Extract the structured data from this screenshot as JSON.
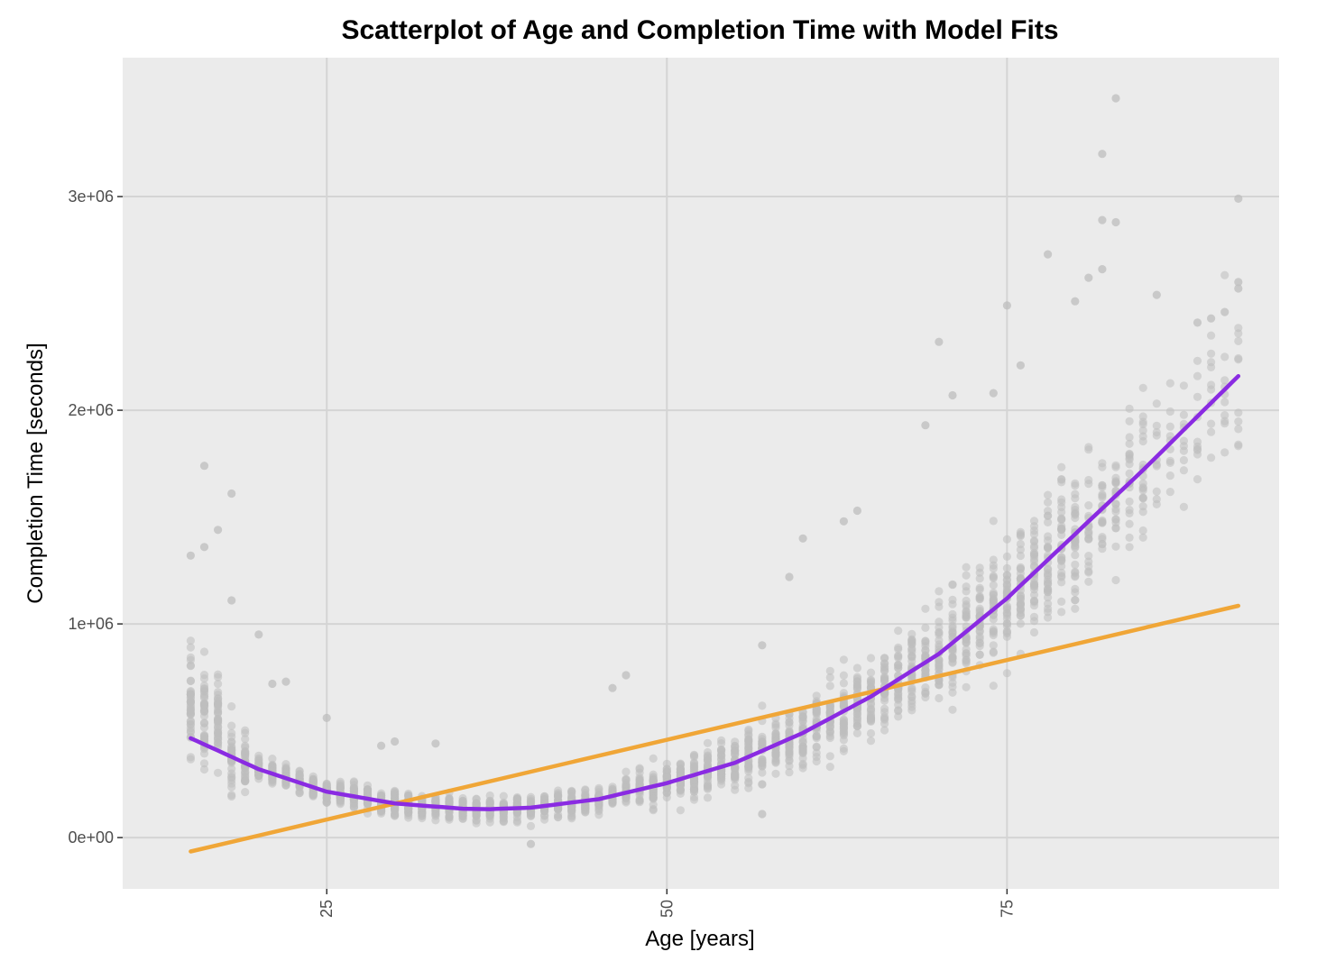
{
  "chart_data": {
    "type": "scatter",
    "title": "Scatterplot of Age and Completion Time with Model Fits",
    "xlabel": "Age [years]",
    "ylabel": "Completion Time [seconds]",
    "xlim": [
      10,
      95
    ],
    "ylim": [
      -240000,
      3650000
    ],
    "x_ticks": [
      25,
      50,
      75
    ],
    "x_tick_labels": [
      "25",
      "50",
      "75"
    ],
    "y_ticks": [
      0,
      1000000,
      2000000,
      3000000
    ],
    "y_tick_labels": [
      "0e+00",
      "1e+06",
      "2e+06",
      "3e+06"
    ],
    "grid": true,
    "legend": "none",
    "points": {
      "color": "#bdbdbd",
      "age_range": [
        15,
        92
      ],
      "description_note": "",
      "outliers": [
        [
          16,
          1740000
        ],
        [
          18,
          1610000
        ],
        [
          17,
          1440000
        ],
        [
          78,
          2730000
        ],
        [
          82,
          3200000
        ],
        [
          83,
          3460000
        ],
        [
          82,
          2890000
        ],
        [
          83,
          2880000
        ],
        [
          92,
          2990000
        ],
        [
          92,
          2600000
        ],
        [
          92,
          2570000
        ],
        [
          70,
          2320000
        ],
        [
          75,
          2490000
        ],
        [
          76,
          2210000
        ],
        [
          69,
          1930000
        ],
        [
          71,
          2070000
        ],
        [
          74,
          2080000
        ],
        [
          80,
          2510000
        ],
        [
          81,
          2620000
        ],
        [
          82,
          2660000
        ],
        [
          86,
          2540000
        ],
        [
          89,
          2410000
        ],
        [
          90,
          2430000
        ],
        [
          91,
          2460000
        ],
        [
          57,
          900000
        ],
        [
          47,
          760000
        ],
        [
          46,
          700000
        ],
        [
          59,
          1220000
        ],
        [
          63,
          1480000
        ],
        [
          64,
          1530000
        ],
        [
          57,
          110000
        ],
        [
          60,
          1400000
        ],
        [
          22,
          730000
        ],
        [
          21,
          720000
        ],
        [
          25,
          560000
        ],
        [
          30,
          450000
        ],
        [
          33,
          440000
        ],
        [
          40,
          -30000
        ],
        [
          29,
          430000
        ],
        [
          20,
          950000
        ],
        [
          18,
          1110000
        ],
        [
          16,
          1360000
        ],
        [
          15,
          1320000
        ]
      ]
    },
    "series": [
      {
        "type": "linear-fit",
        "color": "#f0a637",
        "x": [
          15,
          92
        ],
        "y": [
          -65000,
          1085000
        ]
      },
      {
        "type": "quadratic-fit",
        "color": "#8a2be2",
        "x": [
          15,
          20,
          25,
          30,
          35,
          37,
          40,
          45,
          50,
          55,
          60,
          65,
          70,
          75,
          80,
          85,
          92
        ],
        "y": [
          465000,
          320000,
          215000,
          160000,
          135000,
          133000,
          140000,
          180000,
          255000,
          350000,
          490000,
          660000,
          860000,
          1120000,
          1420000,
          1720000,
          2160000
        ]
      }
    ]
  }
}
